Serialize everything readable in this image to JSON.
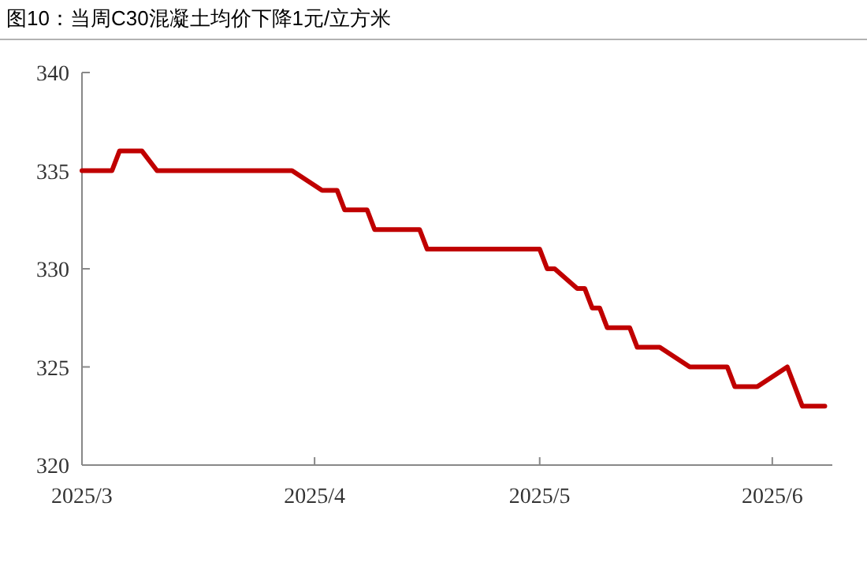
{
  "chart_data": {
    "type": "line",
    "title": "图10：当周C30混凝土均价下降1元/立方米",
    "x": [
      "2025-03-01",
      "2025-03-05",
      "2025-03-06",
      "2025-03-09",
      "2025-03-11",
      "2025-03-29",
      "2025-04-02",
      "2025-04-04",
      "2025-04-05",
      "2025-04-08",
      "2025-04-09",
      "2025-04-15",
      "2025-04-16",
      "2025-05-01",
      "2025-05-02",
      "2025-05-03",
      "2025-05-06",
      "2025-05-07",
      "2025-05-08",
      "2025-05-09",
      "2025-05-10",
      "2025-05-13",
      "2025-05-14",
      "2025-05-17",
      "2025-05-21",
      "2025-05-26",
      "2025-05-27",
      "2025-05-30",
      "2025-06-03",
      "2025-06-05",
      "2025-06-08"
    ],
    "series": [
      {
        "color": "#c00000",
        "values": [
          335,
          335,
          336,
          336,
          335,
          335,
          334,
          334,
          333,
          333,
          332,
          332,
          331,
          331,
          330,
          330,
          329,
          329,
          328,
          328,
          327,
          327,
          326,
          326,
          325,
          325,
          324,
          324,
          325,
          323,
          323
        ]
      }
    ],
    "xlim": [
      "2025-03-01",
      "2025-06-09"
    ],
    "xticks": [
      {
        "value": "2025-03-01",
        "label": "2025/3"
      },
      {
        "value": "2025-04-01",
        "label": "2025/4"
      },
      {
        "value": "2025-05-01",
        "label": "2025/5"
      },
      {
        "value": "2025-06-01",
        "label": "2025/6"
      }
    ],
    "ylim": [
      320,
      340
    ],
    "yticks": [
      320,
      325,
      330,
      335,
      340
    ],
    "grid": false,
    "marker": "none",
    "line_style": "solid"
  }
}
